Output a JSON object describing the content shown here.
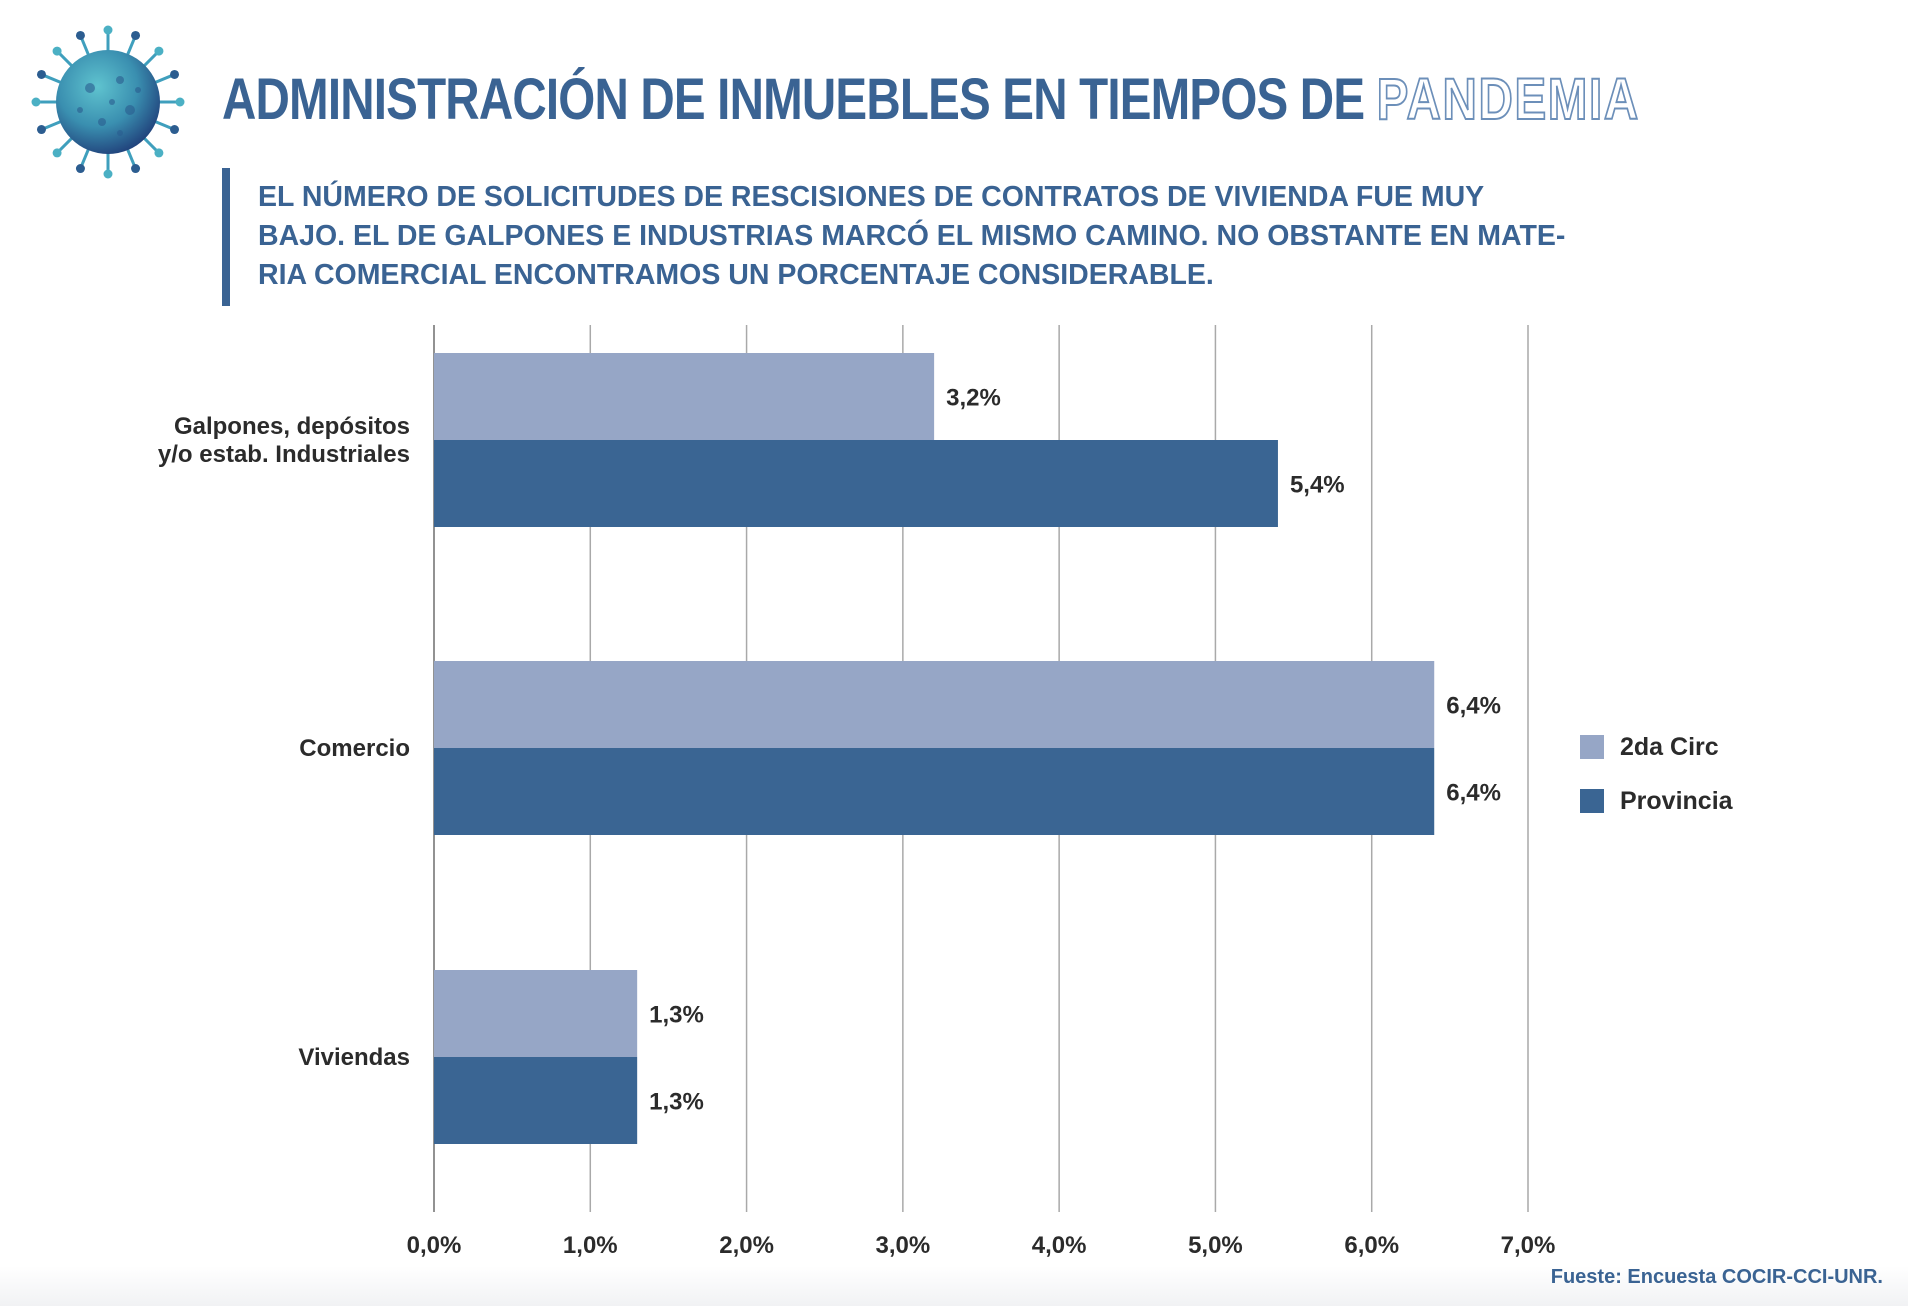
{
  "header": {
    "title_main": "ADMINISTRACIÓN DE INMUEBLES EN TIEMPOS DE",
    "title_outline": "PANDEMIA",
    "subtitle_lines": [
      "EL NÚMERO DE SOLICITUDES DE RESCISIONES DE CONTRATOS DE VIVIENDA FUE MUY",
      "BAJO. EL DE GALPONES E INDUSTRIAS MARCÓ EL MISMO CAMINO. NO OBSTANTE EN MATE-",
      "RIA COMERCIAL ENCONTRAMOS UN PORCENTAJE CONSIDERABLE."
    ],
    "icon": "virus-icon"
  },
  "colors": {
    "accent": "#3a6393",
    "series_2da_circ": "#96a6c6",
    "series_provincia": "#3a6593",
    "grid": "#9a9a9a"
  },
  "chart_data": {
    "type": "bar",
    "orientation": "horizontal",
    "categories": [
      [
        "Galpones, depósitos",
        "y/o estab. Industriales"
      ],
      [
        "Comercio"
      ],
      [
        "Viviendas"
      ]
    ],
    "series": [
      {
        "name": "2da Circ",
        "values": [
          3.2,
          6.4,
          1.3
        ],
        "labels": [
          "3,2%",
          "6,4%",
          "1,3%"
        ]
      },
      {
        "name": "Provincia",
        "values": [
          5.4,
          6.4,
          1.3
        ],
        "labels": [
          "5,4%",
          "6,4%",
          "1,3%"
        ]
      }
    ],
    "xlim": [
      0,
      7
    ],
    "xticks": [
      "0,0%",
      "1,0%",
      "2,0%",
      "3,0%",
      "4,0%",
      "5,0%",
      "6,0%",
      "7,0%"
    ],
    "grid": true,
    "legend_position": "right"
  },
  "footer": {
    "source": "Fueste: Encuesta COCIR-CCI-UNR."
  }
}
